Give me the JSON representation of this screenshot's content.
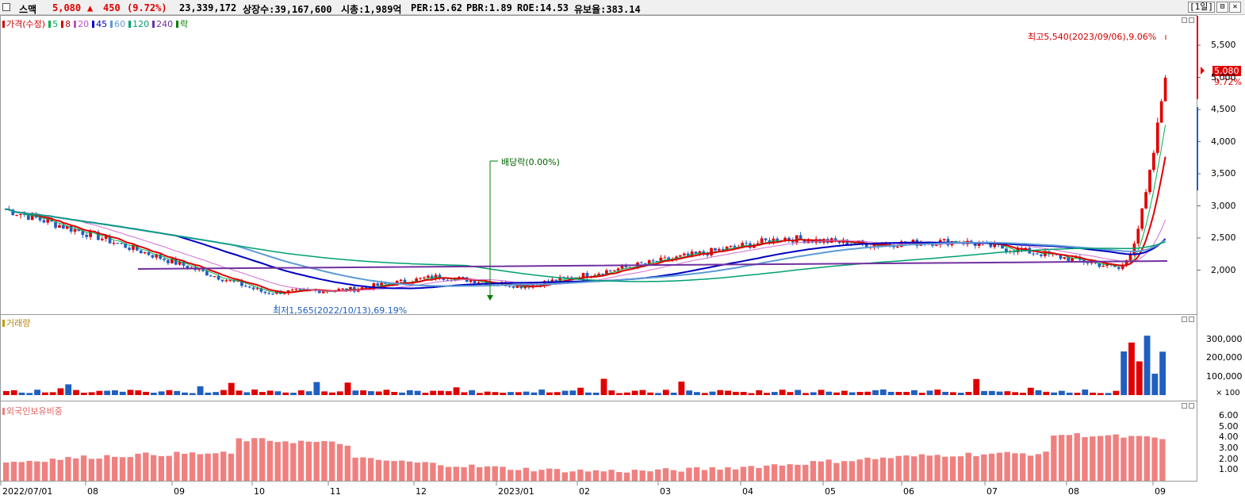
{
  "header": {
    "stock_name": "스맥",
    "price": "5,080",
    "change_arrow": "▲",
    "change": "450",
    "change_pct": "(9.72%)",
    "volume": "23,339,172",
    "listed_shares": "상장수:39,167,600",
    "market_cap": "시총:1,989억",
    "per": "PER:15.62",
    "pbr": "PBR:1.89",
    "roe": "ROE:14.53",
    "reserve_ratio": "유보율:383.14",
    "period_button": "[1일]",
    "restore_icon": "⊟",
    "close_icon": "✕"
  },
  "price_pane": {
    "legend": [
      {
        "label": "가격(수정)",
        "color": "#d00000"
      },
      {
        "label": "5",
        "color": "#00b050"
      },
      {
        "label": "8",
        "color": "#d00000"
      },
      {
        "label": "20",
        "color": "#c050c0"
      },
      {
        "label": "45",
        "color": "#0000c0"
      },
      {
        "label": "60",
        "color": "#5b9bd5"
      },
      {
        "label": "120",
        "color": "#00a070"
      },
      {
        "label": "240",
        "color": "#7030a0"
      },
      {
        "label": "락",
        "color": "#008000"
      }
    ],
    "y_ticks": [
      "5,500",
      "5,000",
      "4,500",
      "4,000",
      "3,500",
      "3,000",
      "2,500",
      "2,000"
    ],
    "current_price_label": "5,080",
    "current_pct_label": "9.72%",
    "high_annotation": "최고5,540(2023/09/06),9.06%",
    "low_annotation": "최저1,565(2022/10/13),69.19%",
    "dividend_annotation": "배당락(0.00%)"
  },
  "volume_pane": {
    "legend": "거래량",
    "y_ticks": [
      "300,000",
      "200,000",
      "100,000"
    ],
    "unit_label": "× 100"
  },
  "foreign_pane": {
    "legend": "외국인보유비중",
    "y_ticks": [
      "6.00",
      "5.00",
      "4.00",
      "3.00",
      "2.00",
      "1.00"
    ]
  },
  "x_axis": [
    "2022/07/01",
    "08",
    "09",
    "10",
    "11",
    "12",
    "2023/01",
    "02",
    "03",
    "04",
    "05",
    "06",
    "07",
    "08",
    "09"
  ],
  "colors": {
    "up": "#e00000",
    "down": "#1f5fc0",
    "foreign": "#f08080"
  },
  "chart_data": {
    "type": "candlestick",
    "price_range": [
      1350,
      5900
    ],
    "monthly_close_approx": [
      {
        "x": "2022/07/01",
        "y": 2950
      },
      {
        "x": "2022/08",
        "y": 2550
      },
      {
        "x": "2022/09",
        "y": 2100
      },
      {
        "x": "2022/10",
        "y": 1650
      },
      {
        "x": "2022/11",
        "y": 1700
      },
      {
        "x": "2022/12",
        "y": 1900
      },
      {
        "x": "2023/01",
        "y": 1750
      },
      {
        "x": "2023/02",
        "y": 2000
      },
      {
        "x": "2023/03",
        "y": 2250
      },
      {
        "x": "2023/04",
        "y": 2500
      },
      {
        "x": "2023/05",
        "y": 2400
      },
      {
        "x": "2023/06",
        "y": 2450
      },
      {
        "x": "2023/07",
        "y": 2250
      },
      {
        "x": "2023/08",
        "y": 2000
      },
      {
        "x": "2023/09",
        "y": 5080
      }
    ],
    "high": {
      "value": 5540,
      "date": "2023/09/06"
    },
    "low": {
      "value": 1565,
      "date": "2022/10/13"
    },
    "volume_max": 320000,
    "foreign_ratio_max": 6.2
  }
}
